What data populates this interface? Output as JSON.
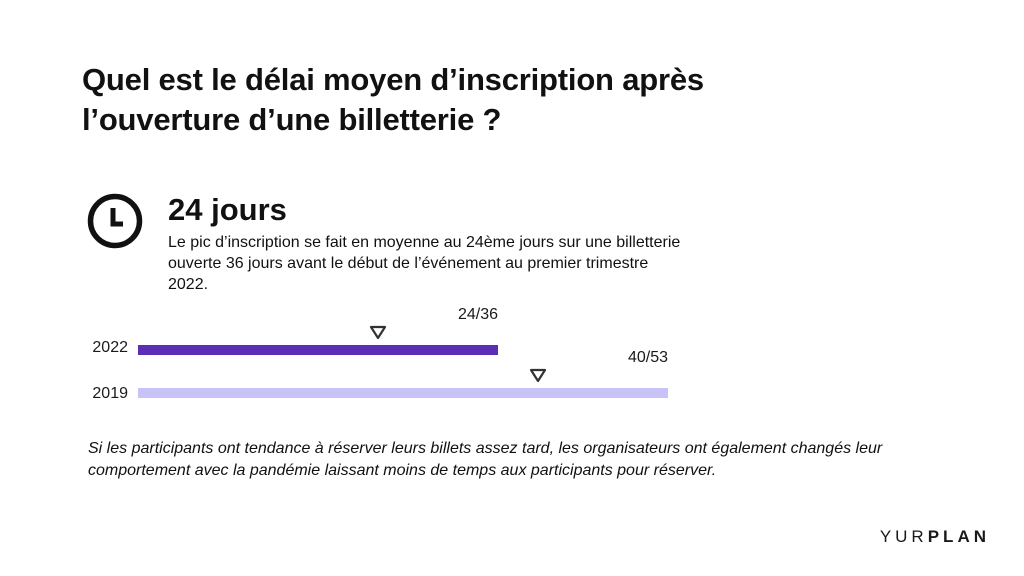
{
  "title": "Quel est le délai moyen d’inscription après l’ouverture d’une billetterie ?",
  "stat": {
    "value": "24 jours",
    "icon": "clock-icon"
  },
  "description": "Le pic d’inscription se fait en moyenne au 24ème jours sur une billetterie ouverte 36 jours avant le début de l’événement au premier trimestre 2022.",
  "note": "Si les participants ont tendance à réserver leurs billets assez tard, les organisateurs ont également changés leur comportement avec la pandémie laissant moins de temps aux participants pour réserver.",
  "brand": {
    "light": "YUR",
    "bold": "PLAN"
  },
  "colors": {
    "bar_2022": "#5b2fb5",
    "bar_2019": "#c7c2f7",
    "text": "#111111"
  },
  "chart_data": {
    "type": "bar",
    "orientation": "horizontal",
    "days_per_pixel_scale_note_removed": null,
    "categories": [
      "2022",
      "2019"
    ],
    "series": [
      {
        "category": "2022",
        "total_days": 36,
        "peak_day": 24,
        "label": "24/36"
      },
      {
        "category": "2019",
        "total_days": 53,
        "peak_day": 40,
        "label": "40/53"
      }
    ]
  }
}
